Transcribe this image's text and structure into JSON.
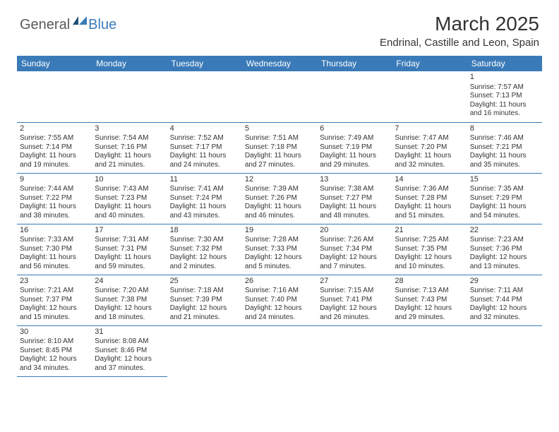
{
  "logo": {
    "general": "General",
    "blue": "Blue"
  },
  "title": "March 2025",
  "location": "Endrinal, Castille and Leon, Spain",
  "colors": {
    "header_bg": "#3a7ab8",
    "header_text": "#ffffff",
    "border": "#3a7ab8",
    "body_text": "#333333",
    "logo_gray": "#5a5a5a",
    "logo_blue": "#3a7ab8",
    "background": "#ffffff"
  },
  "weekdays": [
    "Sunday",
    "Monday",
    "Tuesday",
    "Wednesday",
    "Thursday",
    "Friday",
    "Saturday"
  ],
  "days": [
    {
      "n": 1,
      "sr": "7:57 AM",
      "ss": "7:13 PM",
      "dl": "11 hours and 16 minutes."
    },
    {
      "n": 2,
      "sr": "7:55 AM",
      "ss": "7:14 PM",
      "dl": "11 hours and 19 minutes."
    },
    {
      "n": 3,
      "sr": "7:54 AM",
      "ss": "7:16 PM",
      "dl": "11 hours and 21 minutes."
    },
    {
      "n": 4,
      "sr": "7:52 AM",
      "ss": "7:17 PM",
      "dl": "11 hours and 24 minutes."
    },
    {
      "n": 5,
      "sr": "7:51 AM",
      "ss": "7:18 PM",
      "dl": "11 hours and 27 minutes."
    },
    {
      "n": 6,
      "sr": "7:49 AM",
      "ss": "7:19 PM",
      "dl": "11 hours and 29 minutes."
    },
    {
      "n": 7,
      "sr": "7:47 AM",
      "ss": "7:20 PM",
      "dl": "11 hours and 32 minutes."
    },
    {
      "n": 8,
      "sr": "7:46 AM",
      "ss": "7:21 PM",
      "dl": "11 hours and 35 minutes."
    },
    {
      "n": 9,
      "sr": "7:44 AM",
      "ss": "7:22 PM",
      "dl": "11 hours and 38 minutes."
    },
    {
      "n": 10,
      "sr": "7:43 AM",
      "ss": "7:23 PM",
      "dl": "11 hours and 40 minutes."
    },
    {
      "n": 11,
      "sr": "7:41 AM",
      "ss": "7:24 PM",
      "dl": "11 hours and 43 minutes."
    },
    {
      "n": 12,
      "sr": "7:39 AM",
      "ss": "7:26 PM",
      "dl": "11 hours and 46 minutes."
    },
    {
      "n": 13,
      "sr": "7:38 AM",
      "ss": "7:27 PM",
      "dl": "11 hours and 48 minutes."
    },
    {
      "n": 14,
      "sr": "7:36 AM",
      "ss": "7:28 PM",
      "dl": "11 hours and 51 minutes."
    },
    {
      "n": 15,
      "sr": "7:35 AM",
      "ss": "7:29 PM",
      "dl": "11 hours and 54 minutes."
    },
    {
      "n": 16,
      "sr": "7:33 AM",
      "ss": "7:30 PM",
      "dl": "11 hours and 56 minutes."
    },
    {
      "n": 17,
      "sr": "7:31 AM",
      "ss": "7:31 PM",
      "dl": "11 hours and 59 minutes."
    },
    {
      "n": 18,
      "sr": "7:30 AM",
      "ss": "7:32 PM",
      "dl": "12 hours and 2 minutes."
    },
    {
      "n": 19,
      "sr": "7:28 AM",
      "ss": "7:33 PM",
      "dl": "12 hours and 5 minutes."
    },
    {
      "n": 20,
      "sr": "7:26 AM",
      "ss": "7:34 PM",
      "dl": "12 hours and 7 minutes."
    },
    {
      "n": 21,
      "sr": "7:25 AM",
      "ss": "7:35 PM",
      "dl": "12 hours and 10 minutes."
    },
    {
      "n": 22,
      "sr": "7:23 AM",
      "ss": "7:36 PM",
      "dl": "12 hours and 13 minutes."
    },
    {
      "n": 23,
      "sr": "7:21 AM",
      "ss": "7:37 PM",
      "dl": "12 hours and 15 minutes."
    },
    {
      "n": 24,
      "sr": "7:20 AM",
      "ss": "7:38 PM",
      "dl": "12 hours and 18 minutes."
    },
    {
      "n": 25,
      "sr": "7:18 AM",
      "ss": "7:39 PM",
      "dl": "12 hours and 21 minutes."
    },
    {
      "n": 26,
      "sr": "7:16 AM",
      "ss": "7:40 PM",
      "dl": "12 hours and 24 minutes."
    },
    {
      "n": 27,
      "sr": "7:15 AM",
      "ss": "7:41 PM",
      "dl": "12 hours and 26 minutes."
    },
    {
      "n": 28,
      "sr": "7:13 AM",
      "ss": "7:43 PM",
      "dl": "12 hours and 29 minutes."
    },
    {
      "n": 29,
      "sr": "7:11 AM",
      "ss": "7:44 PM",
      "dl": "12 hours and 32 minutes."
    },
    {
      "n": 30,
      "sr": "8:10 AM",
      "ss": "8:45 PM",
      "dl": "12 hours and 34 minutes."
    },
    {
      "n": 31,
      "sr": "8:08 AM",
      "ss": "8:46 PM",
      "dl": "12 hours and 37 minutes."
    }
  ],
  "layout": {
    "first_weekday_index": 6,
    "rows": 6,
    "cols": 7,
    "cell_fontsize": 10,
    "daynum_fontsize": 11,
    "header_fontsize": 12,
    "title_fontsize": 28,
    "location_fontsize": 15
  },
  "labels": {
    "sunrise": "Sunrise: ",
    "sunset": "Sunset: ",
    "daylight": "Daylight: "
  }
}
